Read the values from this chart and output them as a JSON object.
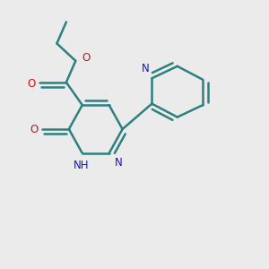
{
  "bg_color": "#ebebeb",
  "bond_color": "#2d8080",
  "bond_width": 1.8,
  "N_color": "#1414cc",
  "O_color": "#cc1414",
  "figsize": [
    3.0,
    3.0
  ],
  "dpi": 100,
  "xlim": [
    0.0,
    1.0
  ],
  "ylim": [
    0.0,
    1.0
  ]
}
